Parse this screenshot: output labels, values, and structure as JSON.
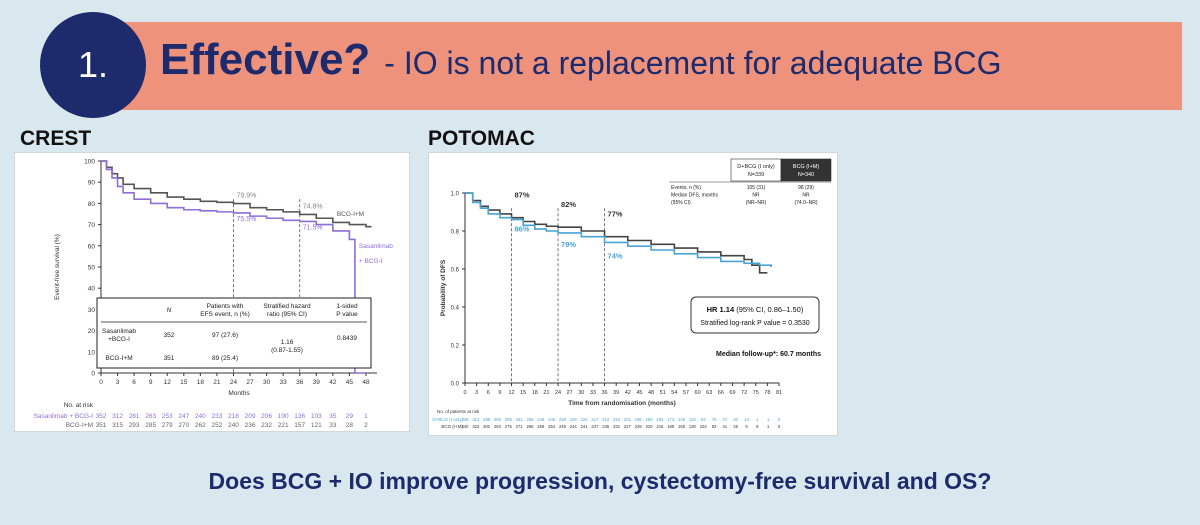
{
  "slide": {
    "number": "1.",
    "headline": "Effective?",
    "subhead": "- IO is not a replacement for adequate BCG",
    "question": "Does BCG + IO improve progression, cystectomy-free survival and OS?",
    "colors": {
      "banner": "#ef927c",
      "navy": "#1d2b6c",
      "background": "#d9e8ee"
    }
  },
  "crest": {
    "label": "CREST",
    "table": {
      "headers": [
        "N",
        "Patients with EFS event, n (%)",
        "Stratified hazard ratio (95% CI)",
        "1-sided P value"
      ],
      "rows": [
        {
          "arm": "Sasanlimab +BCG-I",
          "n": "352",
          "events": "97 (27.6)"
        },
        {
          "arm": "BCG-I+M",
          "n": "351",
          "events": "89 (25.4)"
        }
      ],
      "hr": "1.16",
      "ci": "(0.87-1.55)",
      "p": "0.8439"
    },
    "at_risk": {
      "title": "No. at risk",
      "rows": [
        {
          "label": "Sasanlimab + BCG-I",
          "values": [
            "352",
            "312",
            "281",
            "263",
            "253",
            "247",
            "240",
            "233",
            "218",
            "209",
            "206",
            "190",
            "136",
            "103",
            "35",
            "29",
            "1"
          ]
        },
        {
          "label": "BCG-I+M",
          "values": [
            "351",
            "315",
            "293",
            "285",
            "279",
            "270",
            "262",
            "252",
            "240",
            "236",
            "232",
            "221",
            "157",
            "121",
            "33",
            "28",
            "2"
          ]
        }
      ]
    }
  },
  "potomac": {
    "label": "POTOMAC",
    "table": {
      "headers": [
        "D+BCG (I only) N=339",
        "BCG (I+M) N=340"
      ],
      "rows": [
        {
          "label": "Events, n (%)",
          "a": "105 (31)",
          "b": "98 (29)"
        },
        {
          "label": "Median DFS, months",
          "a": "NR",
          "b": "NR"
        },
        {
          "label": "(95% CI)",
          "a": "(NR–NR)",
          "b": "(74.0–NR)"
        }
      ]
    },
    "hr_box": {
      "line1_bold": "HR 1.14",
      "line1_rest": " (95% CI, 0.86–1.50)",
      "line2": "Stratified log-rank P value = 0.3530"
    },
    "median_followup": "Median follow-up*: 60.7 months",
    "at_risk": {
      "title": "No. of patients at risk",
      "rows": [
        {
          "label": "D+BCG (I only)",
          "values": [
            "339",
            "314",
            "298",
            "285",
            "269",
            "261",
            "255",
            "249",
            "245",
            "238",
            "228",
            "220",
            "217",
            "212",
            "210",
            "201",
            "196",
            "189",
            "183",
            "173",
            "145",
            "120",
            "92",
            "70",
            "47",
            "20",
            "13",
            "1",
            "1",
            "0"
          ]
        },
        {
          "label": "BCG (I+M)",
          "values": [
            "340",
            "322",
            "302",
            "283",
            "276",
            "271",
            "265",
            "258",
            "254",
            "249",
            "244",
            "241",
            "237",
            "235",
            "231",
            "227",
            "225",
            "220",
            "216",
            "199",
            "165",
            "130",
            "102",
            "83",
            "41",
            "25",
            "8",
            "8",
            "1",
            "0"
          ]
        }
      ]
    }
  },
  "chart_data": [
    {
      "type": "line",
      "title": "",
      "xlabel": "Months",
      "ylabel": "Event-free survival (%)",
      "xlim": [
        0,
        50
      ],
      "ylim": [
        0,
        100
      ],
      "xticks": [
        0,
        3,
        6,
        9,
        12,
        15,
        18,
        21,
        24,
        27,
        30,
        33,
        36,
        39,
        42,
        45,
        48
      ],
      "yticks": [
        0,
        10,
        20,
        30,
        40,
        50,
        60,
        70,
        80,
        90,
        100
      ],
      "series": [
        {
          "name": "BCG-I+M",
          "color": "#555555",
          "x": [
            0,
            1,
            2,
            3,
            4,
            6,
            9,
            12,
            15,
            18,
            21,
            24,
            27,
            30,
            33,
            36,
            39,
            42,
            45,
            48,
            49
          ],
          "y": [
            100,
            97,
            94,
            92,
            89,
            87,
            85,
            83,
            82,
            81,
            80.5,
            79.9,
            78,
            77,
            76,
            74.8,
            73,
            71,
            70,
            69,
            69
          ]
        },
        {
          "name": "Sasanlimab + BCG-I",
          "color": "#8e6fd6",
          "x": [
            0,
            1,
            2,
            3,
            4,
            6,
            9,
            12,
            15,
            18,
            21,
            24,
            27,
            30,
            33,
            36,
            39,
            42,
            45,
            46,
            46,
            48
          ],
          "y": [
            100,
            96,
            92,
            88,
            85,
            82,
            80,
            78,
            77,
            76.5,
            76,
            75.5,
            74,
            73,
            72,
            71.5,
            70,
            67,
            63,
            63,
            0,
            0
          ]
        }
      ],
      "annotations": [
        {
          "x": 24,
          "y": 79.9,
          "text": "79.9%"
        },
        {
          "x": 24,
          "y": 75.5,
          "text": "75.5%"
        },
        {
          "x": 36,
          "y": 74.8,
          "text": "74.8%"
        },
        {
          "x": 36,
          "y": 71.5,
          "text": "71.5%"
        }
      ],
      "legend": "series labels at right end of curves"
    },
    {
      "type": "line",
      "title": "",
      "xlabel": "Time from randomisation (months)",
      "ylabel": "Probability of DFS",
      "xlim": [
        0,
        81
      ],
      "ylim": [
        0,
        1.0
      ],
      "xticks": [
        0,
        3,
        6,
        9,
        12,
        15,
        18,
        21,
        24,
        27,
        30,
        33,
        36,
        39,
        42,
        45,
        48,
        51,
        54,
        57,
        60,
        63,
        66,
        69,
        72,
        75,
        78,
        81
      ],
      "yticks": [
        0,
        0.2,
        0.4,
        0.6,
        0.8,
        1.0
      ],
      "series": [
        {
          "name": "BCG (I+M)",
          "color": "#444444",
          "x": [
            0,
            2,
            4,
            6,
            9,
            12,
            15,
            18,
            21,
            24,
            30,
            36,
            42,
            48,
            54,
            60,
            66,
            72,
            74,
            76,
            78
          ],
          "y": [
            1.0,
            0.96,
            0.93,
            0.91,
            0.89,
            0.87,
            0.85,
            0.835,
            0.825,
            0.82,
            0.8,
            0.77,
            0.75,
            0.73,
            0.71,
            0.69,
            0.67,
            0.65,
            0.62,
            0.58,
            0.58
          ]
        },
        {
          "name": "D+BCG (I only)",
          "color": "#4aa3d6",
          "x": [
            0,
            2,
            4,
            6,
            9,
            12,
            15,
            18,
            21,
            24,
            30,
            36,
            42,
            48,
            54,
            60,
            66,
            72,
            76,
            79
          ],
          "y": [
            1.0,
            0.95,
            0.92,
            0.89,
            0.87,
            0.86,
            0.83,
            0.81,
            0.8,
            0.79,
            0.77,
            0.74,
            0.72,
            0.7,
            0.68,
            0.66,
            0.64,
            0.63,
            0.62,
            0.61
          ]
        }
      ],
      "annotations": [
        {
          "x": 12,
          "y": 0.87,
          "text": "87%"
        },
        {
          "x": 12,
          "y": 0.86,
          "text": "86%"
        },
        {
          "x": 24,
          "y": 0.82,
          "text": "82%"
        },
        {
          "x": 24,
          "y": 0.79,
          "text": "79%"
        },
        {
          "x": 36,
          "y": 0.77,
          "text": "77%"
        },
        {
          "x": 36,
          "y": 0.74,
          "text": "74%"
        }
      ]
    }
  ]
}
